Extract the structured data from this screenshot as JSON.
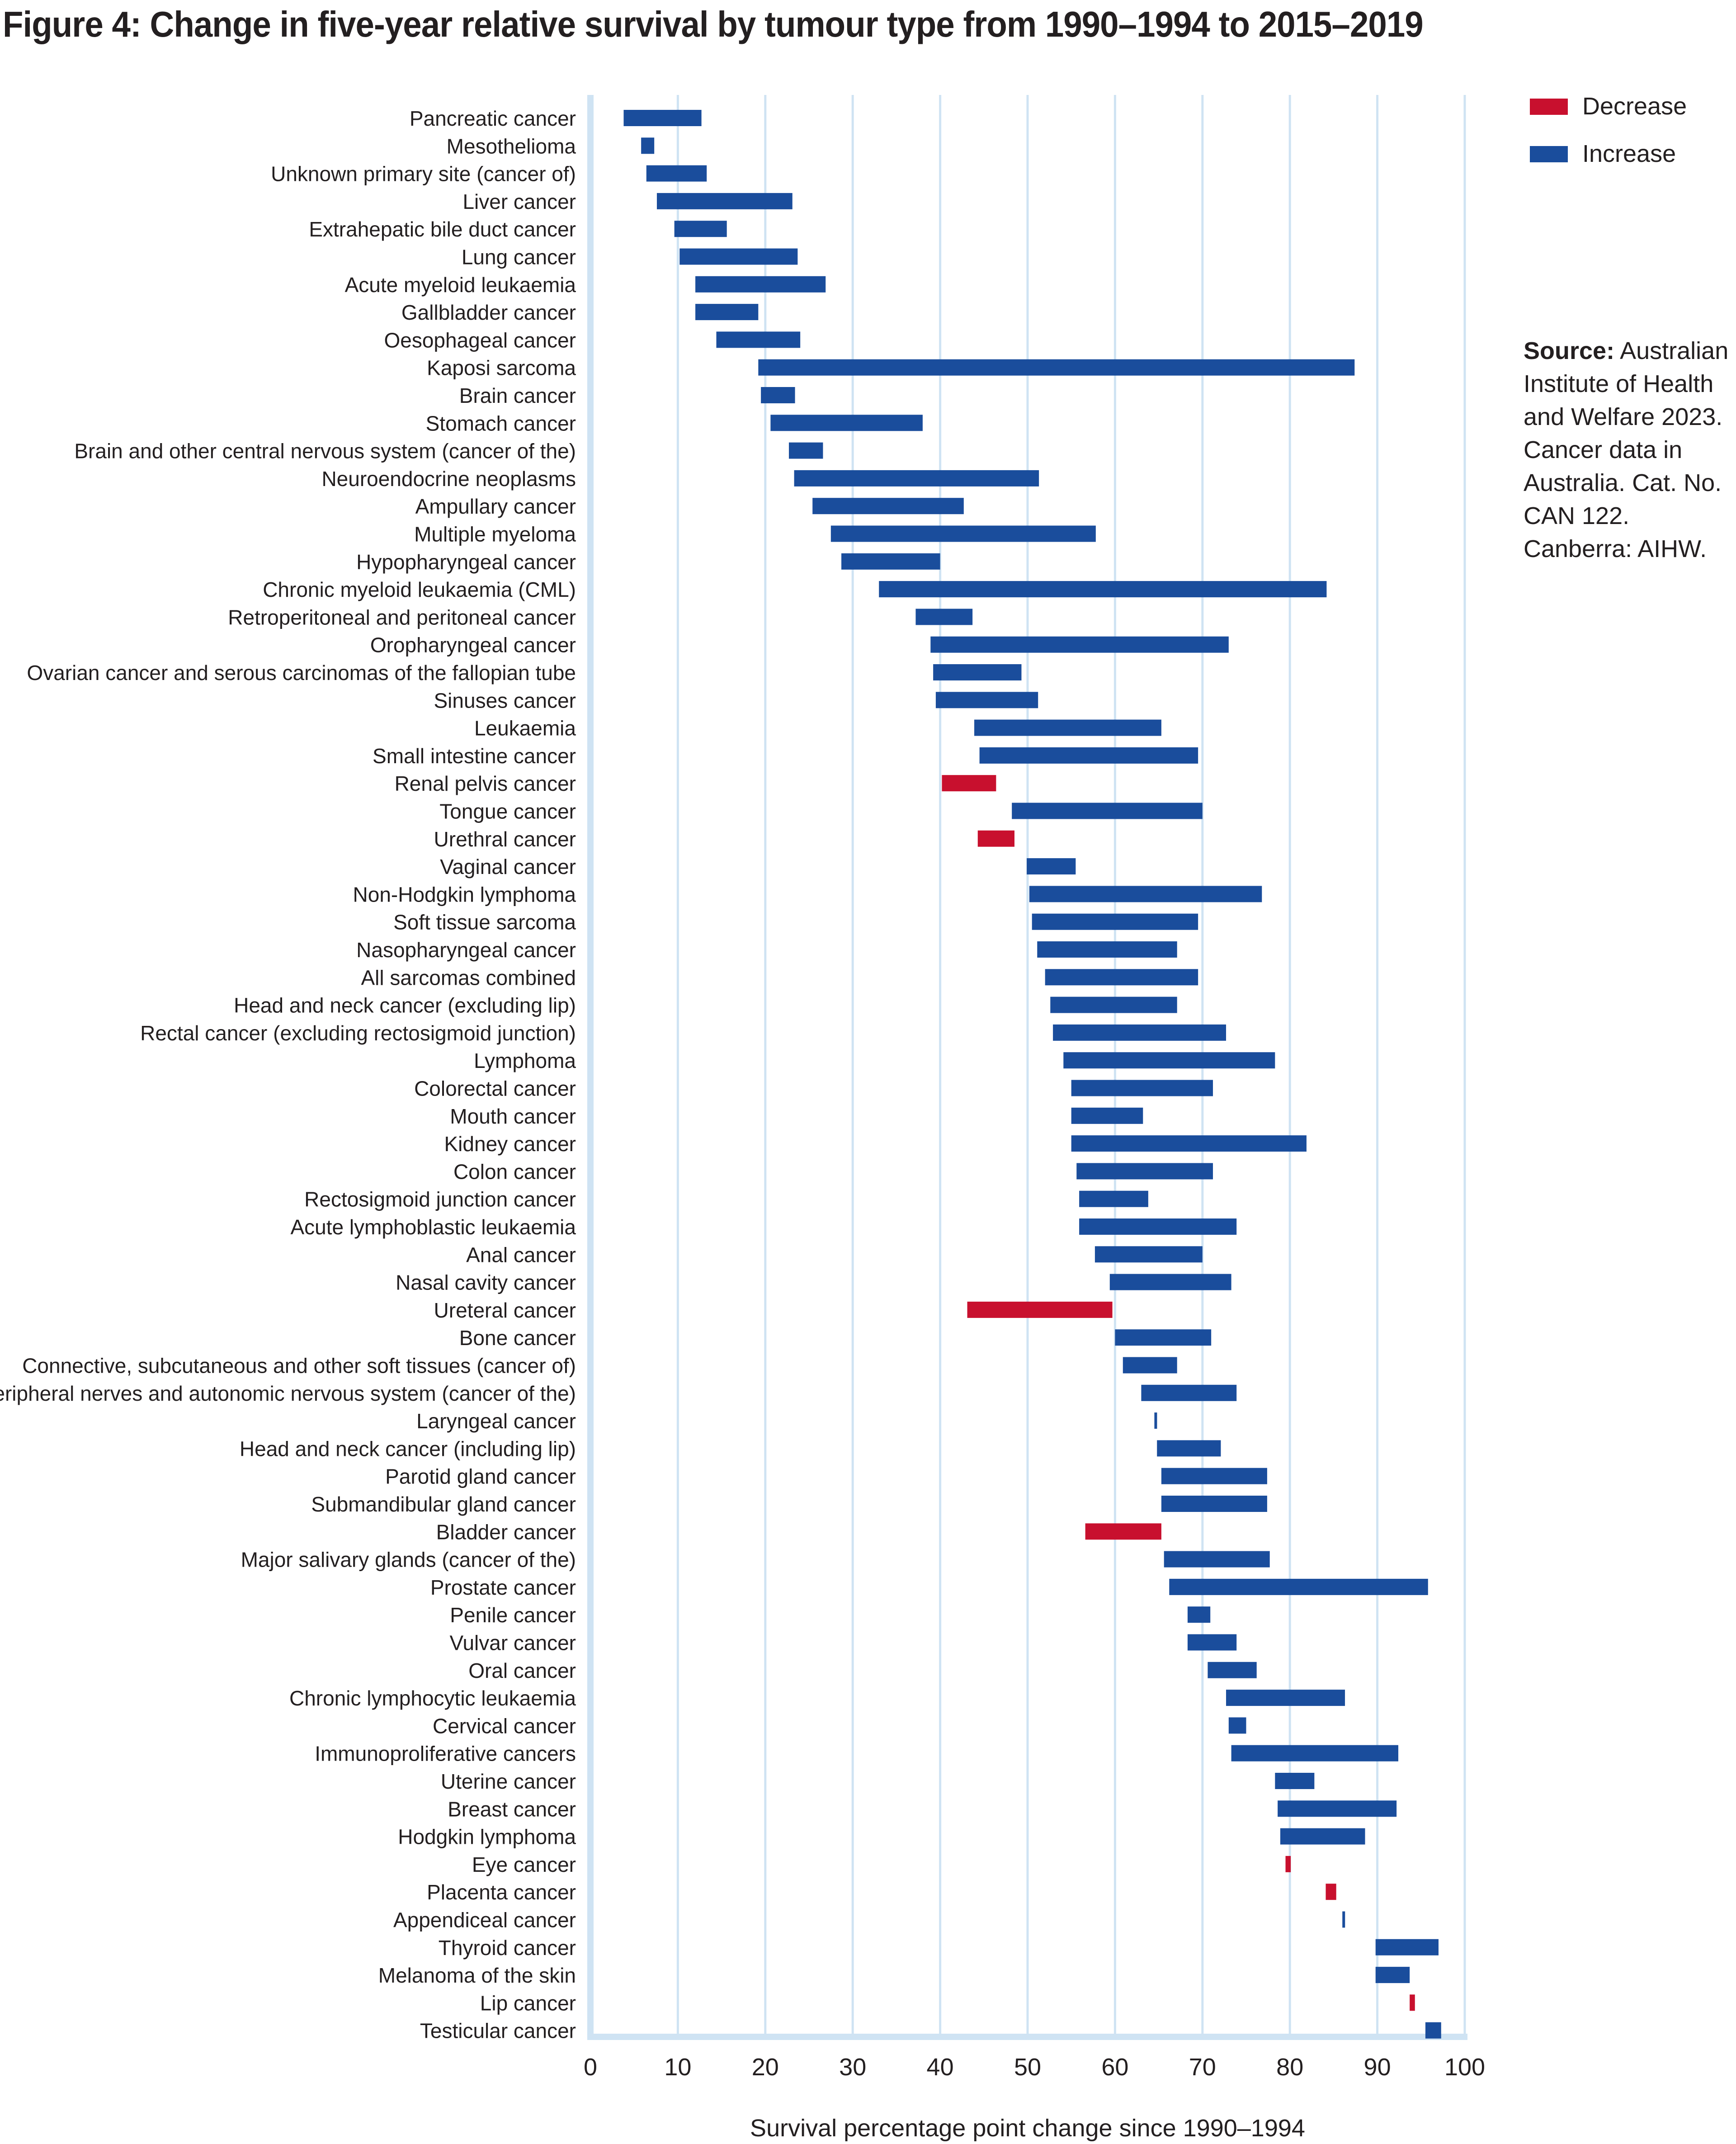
{
  "title": "Figure 4: Change in five-year relative survival by tumour type from 1990–1994 to 2015–2019",
  "legend": [
    {
      "label": "Decrease",
      "color": "#c8102e"
    },
    {
      "label": "Increase",
      "color": "#1a4d9c"
    }
  ],
  "source": {
    "heading": "Source:",
    "text": "Australian Institute of Health and Welfare 2023. Cancer data in Australia. Cat. No. CAN 122. Canberra: AIHW."
  },
  "chart_data": {
    "type": "bar",
    "orientation": "horizontal-floating-range",
    "xlabel": "Survival percentage point change since 1990–1994",
    "xlim": [
      0,
      100
    ],
    "xticks": [
      0,
      10,
      20,
      30,
      40,
      50,
      60,
      70,
      80,
      90,
      100
    ],
    "grid": true,
    "legend_position": "top-right",
    "series": [
      {
        "name": "Decrease",
        "color": "#c8102e"
      },
      {
        "name": "Increase",
        "color": "#1a4d9c"
      }
    ],
    "rows": [
      {
        "label": "Pancreatic cancer",
        "start": 3.8,
        "end": 12.7,
        "direction": "Increase"
      },
      {
        "label": "Mesothelioma",
        "start": 5.8,
        "end": 7.3,
        "direction": "Increase"
      },
      {
        "label": "Unknown primary site (cancer of)",
        "start": 6.4,
        "end": 13.3,
        "direction": "Increase"
      },
      {
        "label": "Liver cancer",
        "start": 7.6,
        "end": 23.1,
        "direction": "Increase"
      },
      {
        "label": "Extrahepatic bile duct cancer",
        "start": 9.6,
        "end": 15.6,
        "direction": "Increase"
      },
      {
        "label": "Lung cancer",
        "start": 10.2,
        "end": 23.7,
        "direction": "Increase"
      },
      {
        "label": "Acute myeloid leukaemia",
        "start": 12.0,
        "end": 26.9,
        "direction": "Increase"
      },
      {
        "label": "Gallbladder cancer",
        "start": 12.0,
        "end": 19.2,
        "direction": "Increase"
      },
      {
        "label": "Oesophageal cancer",
        "start": 14.4,
        "end": 24.0,
        "direction": "Increase"
      },
      {
        "label": "Kaposi sarcoma",
        "start": 19.2,
        "end": 87.4,
        "direction": "Increase"
      },
      {
        "label": "Brain cancer",
        "start": 19.5,
        "end": 23.4,
        "direction": "Increase"
      },
      {
        "label": "Stomach cancer",
        "start": 20.6,
        "end": 38.0,
        "direction": "Increase"
      },
      {
        "label": "Brain and other central nervous system (cancer of the)",
        "start": 22.7,
        "end": 26.6,
        "direction": "Increase"
      },
      {
        "label": "Neuroendocrine neoplasms",
        "start": 23.3,
        "end": 51.3,
        "direction": "Increase"
      },
      {
        "label": "Ampullary cancer",
        "start": 25.4,
        "end": 42.7,
        "direction": "Increase"
      },
      {
        "label": "Multiple myeloma",
        "start": 27.5,
        "end": 57.8,
        "direction": "Increase"
      },
      {
        "label": "Hypopharyngeal cancer",
        "start": 28.7,
        "end": 40.0,
        "direction": "Increase"
      },
      {
        "label": "Chronic myeloid leukaemia (CML)",
        "start": 33.0,
        "end": 84.2,
        "direction": "Increase"
      },
      {
        "label": "Retroperitoneal and peritoneal cancer",
        "start": 37.2,
        "end": 43.7,
        "direction": "Increase"
      },
      {
        "label": "Oropharyngeal cancer",
        "start": 38.9,
        "end": 73.0,
        "direction": "Increase"
      },
      {
        "label": "Ovarian cancer and serous carcinomas of the fallopian tube",
        "start": 39.2,
        "end": 49.3,
        "direction": "Increase"
      },
      {
        "label": "Sinuses cancer",
        "start": 39.5,
        "end": 51.2,
        "direction": "Increase"
      },
      {
        "label": "Leukaemia",
        "start": 43.9,
        "end": 65.3,
        "direction": "Increase"
      },
      {
        "label": "Small intestine cancer",
        "start": 44.5,
        "end": 69.5,
        "direction": "Increase"
      },
      {
        "label": "Renal pelvis cancer",
        "start": 46.4,
        "end": 40.2,
        "direction": "Decrease"
      },
      {
        "label": "Tongue cancer",
        "start": 48.2,
        "end": 70.0,
        "direction": "Increase"
      },
      {
        "label": "Urethral cancer",
        "start": 48.5,
        "end": 44.3,
        "direction": "Decrease"
      },
      {
        "label": "Vaginal cancer",
        "start": 49.9,
        "end": 55.5,
        "direction": "Increase"
      },
      {
        "label": "Non-Hodgkin lymphoma",
        "start": 50.2,
        "end": 76.8,
        "direction": "Increase"
      },
      {
        "label": "Soft tissue sarcoma",
        "start": 50.5,
        "end": 69.5,
        "direction": "Increase"
      },
      {
        "label": "Nasopharyngeal cancer",
        "start": 51.1,
        "end": 67.1,
        "direction": "Increase"
      },
      {
        "label": "All sarcomas combined",
        "start": 52.0,
        "end": 69.5,
        "direction": "Increase"
      },
      {
        "label": "Head and neck cancer (excluding lip)",
        "start": 52.6,
        "end": 67.1,
        "direction": "Increase"
      },
      {
        "label": "Rectal cancer (excluding rectosigmoid junction)",
        "start": 52.9,
        "end": 72.7,
        "direction": "Increase"
      },
      {
        "label": "Lymphoma",
        "start": 54.1,
        "end": 78.3,
        "direction": "Increase"
      },
      {
        "label": "Colorectal cancer",
        "start": 55.0,
        "end": 71.2,
        "direction": "Increase"
      },
      {
        "label": "Mouth cancer",
        "start": 55.0,
        "end": 63.2,
        "direction": "Increase"
      },
      {
        "label": "Kidney cancer",
        "start": 55.0,
        "end": 81.9,
        "direction": "Increase"
      },
      {
        "label": "Colon cancer",
        "start": 55.6,
        "end": 71.2,
        "direction": "Increase"
      },
      {
        "label": "Rectosigmoid junction cancer",
        "start": 55.9,
        "end": 63.8,
        "direction": "Increase"
      },
      {
        "label": "Acute lymphoblastic leukaemia",
        "start": 55.9,
        "end": 73.9,
        "direction": "Increase"
      },
      {
        "label": "Anal cancer",
        "start": 57.7,
        "end": 70.0,
        "direction": "Increase"
      },
      {
        "label": "Nasal cavity cancer",
        "start": 59.4,
        "end": 73.3,
        "direction": "Increase"
      },
      {
        "label": "Ureteral cancer",
        "start": 59.7,
        "end": 43.1,
        "direction": "Decrease"
      },
      {
        "label": "Bone cancer",
        "start": 60.0,
        "end": 71.0,
        "direction": "Increase"
      },
      {
        "label": "Connective, subcutaneous and other soft tissues (cancer of)",
        "start": 60.9,
        "end": 67.1,
        "direction": "Increase"
      },
      {
        "label": "Peripheral nerves and autonomic nervous system (cancer of the)",
        "start": 63.0,
        "end": 73.9,
        "direction": "Increase"
      },
      {
        "label": "Laryngeal cancer",
        "start": 64.5,
        "end": 64.8,
        "direction": "Increase"
      },
      {
        "label": "Head and neck cancer (including lip)",
        "start": 64.8,
        "end": 72.1,
        "direction": "Increase"
      },
      {
        "label": "Parotid gland cancer",
        "start": 65.3,
        "end": 77.4,
        "direction": "Increase"
      },
      {
        "label": "Submandibular gland cancer",
        "start": 65.3,
        "end": 77.4,
        "direction": "Increase"
      },
      {
        "label": "Bladder cancer",
        "start": 65.3,
        "end": 56.6,
        "direction": "Decrease"
      },
      {
        "label": "Major salivary glands (cancer of the)",
        "start": 65.6,
        "end": 77.7,
        "direction": "Increase"
      },
      {
        "label": "Prostate cancer",
        "start": 66.2,
        "end": 95.8,
        "direction": "Increase"
      },
      {
        "label": "Penile cancer",
        "start": 68.3,
        "end": 70.9,
        "direction": "Increase"
      },
      {
        "label": "Vulvar cancer",
        "start": 68.3,
        "end": 73.9,
        "direction": "Increase"
      },
      {
        "label": "Oral cancer",
        "start": 70.6,
        "end": 76.2,
        "direction": "Increase"
      },
      {
        "label": "Chronic lymphocytic leukaemia",
        "start": 72.7,
        "end": 86.3,
        "direction": "Increase"
      },
      {
        "label": "Cervical cancer",
        "start": 73.0,
        "end": 75.0,
        "direction": "Increase"
      },
      {
        "label": "Immunoproliferative cancers",
        "start": 73.3,
        "end": 92.4,
        "direction": "Increase"
      },
      {
        "label": "Uterine cancer",
        "start": 78.3,
        "end": 82.8,
        "direction": "Increase"
      },
      {
        "label": "Breast cancer",
        "start": 78.6,
        "end": 92.2,
        "direction": "Increase"
      },
      {
        "label": "Hodgkin lymphoma",
        "start": 78.9,
        "end": 88.6,
        "direction": "Increase"
      },
      {
        "label": "Eye cancer",
        "start": 80.1,
        "end": 79.5,
        "direction": "Decrease"
      },
      {
        "label": "Placenta cancer",
        "start": 85.3,
        "end": 84.1,
        "direction": "Decrease"
      },
      {
        "label": "Appendiceal cancer",
        "start": 86.0,
        "end": 86.3,
        "direction": "Increase"
      },
      {
        "label": "Thyroid cancer",
        "start": 89.8,
        "end": 97.0,
        "direction": "Increase"
      },
      {
        "label": "Melanoma of the skin",
        "start": 89.8,
        "end": 93.7,
        "direction": "Increase"
      },
      {
        "label": "Lip cancer",
        "start": 94.3,
        "end": 93.7,
        "direction": "Decrease"
      },
      {
        "label": "Testicular cancer",
        "start": 95.5,
        "end": 97.3,
        "direction": "Increase"
      }
    ]
  }
}
